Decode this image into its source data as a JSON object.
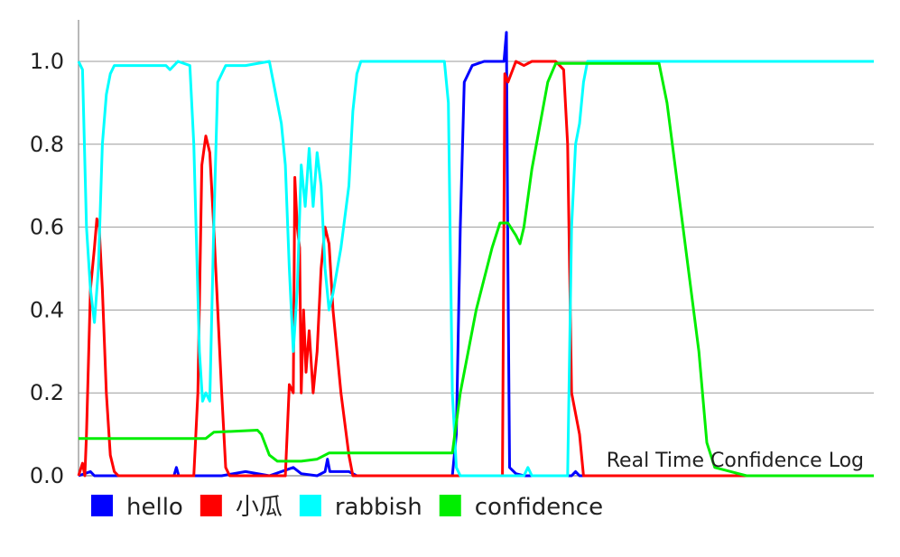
{
  "chart_data": {
    "type": "line",
    "title": "",
    "description": "Real Time Confidence Log",
    "xlabel": "",
    "ylabel": "",
    "x_range": [
      0,
      100
    ],
    "ylim": [
      0,
      1.1
    ],
    "y_ticks": [
      "0.0",
      "0.2",
      "0.4",
      "0.6",
      "0.8",
      "1.0"
    ],
    "grid": "horizontal",
    "legend_position": "bottom-left",
    "series": [
      {
        "name": "hello",
        "color": "#0000ff",
        "points": [
          [
            0,
            0.0
          ],
          [
            1.5,
            0.01
          ],
          [
            2,
            0.0
          ],
          [
            12,
            0.0
          ],
          [
            12.3,
            0.02
          ],
          [
            12.6,
            0.0
          ],
          [
            18,
            0.0
          ],
          [
            21,
            0.01
          ],
          [
            24,
            0.0
          ],
          [
            27,
            0.02
          ],
          [
            28,
            0.005
          ],
          [
            30,
            0.0
          ],
          [
            31,
            0.01
          ],
          [
            31.3,
            0.04
          ],
          [
            31.6,
            0.01
          ],
          [
            34,
            0.01
          ],
          [
            35,
            0.0
          ],
          [
            47,
            0.0
          ],
          [
            47.5,
            0.1
          ],
          [
            48,
            0.6
          ],
          [
            48.5,
            0.95
          ],
          [
            49.5,
            0.99
          ],
          [
            51,
            1.0
          ],
          [
            53.5,
            1.0
          ],
          [
            53.8,
            1.07
          ],
          [
            54,
            0.5
          ],
          [
            54.2,
            0.02
          ],
          [
            55,
            0.005
          ],
          [
            56,
            0.0
          ],
          [
            62,
            0.0
          ],
          [
            62.5,
            0.01
          ],
          [
            63,
            0.0
          ],
          [
            100,
            0.0
          ]
        ]
      },
      {
        "name": "小瓜",
        "color": "#ff0000",
        "points": [
          [
            0,
            0.0
          ],
          [
            0.5,
            0.03
          ],
          [
            0.8,
            0.0
          ],
          [
            1,
            0.1
          ],
          [
            1.5,
            0.45
          ],
          [
            2,
            0.55
          ],
          [
            2.3,
            0.62
          ],
          [
            2.6,
            0.6
          ],
          [
            3,
            0.45
          ],
          [
            3.5,
            0.2
          ],
          [
            4,
            0.05
          ],
          [
            4.5,
            0.01
          ],
          [
            5,
            0.0
          ],
          [
            14.5,
            0.0
          ],
          [
            15,
            0.2
          ],
          [
            15.5,
            0.75
          ],
          [
            16,
            0.82
          ],
          [
            16.5,
            0.78
          ],
          [
            17,
            0.6
          ],
          [
            18,
            0.2
          ],
          [
            18.5,
            0.02
          ],
          [
            19,
            0.0
          ],
          [
            26,
            0.0
          ],
          [
            26.5,
            0.22
          ],
          [
            27,
            0.2
          ],
          [
            27.2,
            0.72
          ],
          [
            27.5,
            0.6
          ],
          [
            27.8,
            0.55
          ],
          [
            28,
            0.2
          ],
          [
            28.3,
            0.4
          ],
          [
            28.6,
            0.25
          ],
          [
            29,
            0.35
          ],
          [
            29.5,
            0.2
          ],
          [
            30,
            0.3
          ],
          [
            30.5,
            0.5
          ],
          [
            31,
            0.6
          ],
          [
            31.5,
            0.56
          ],
          [
            32,
            0.4
          ],
          [
            33,
            0.2
          ],
          [
            34,
            0.05
          ],
          [
            34.5,
            0.0
          ],
          [
            53.3,
            0.0
          ],
          [
            53.6,
            0.97
          ],
          [
            54,
            0.95
          ],
          [
            55,
            1.0
          ],
          [
            56,
            0.99
          ],
          [
            57,
            1.0
          ],
          [
            60,
            1.0
          ],
          [
            61,
            0.98
          ],
          [
            61.5,
            0.8
          ],
          [
            62,
            0.2
          ],
          [
            63,
            0.1
          ],
          [
            63.5,
            0.0
          ],
          [
            100,
            0.0
          ]
        ]
      },
      {
        "name": "rabbish",
        "color": "#00ffff",
        "points": [
          [
            0,
            1.0
          ],
          [
            0.5,
            0.98
          ],
          [
            1,
            0.6
          ],
          [
            1.5,
            0.45
          ],
          [
            2,
            0.37
          ],
          [
            2.5,
            0.5
          ],
          [
            3,
            0.8
          ],
          [
            3.5,
            0.92
          ],
          [
            4,
            0.97
          ],
          [
            4.5,
            0.99
          ],
          [
            6,
            0.99
          ],
          [
            11,
            0.99
          ],
          [
            11.5,
            0.98
          ],
          [
            12.5,
            1.0
          ],
          [
            14,
            0.99
          ],
          [
            14.5,
            0.8
          ],
          [
            15.2,
            0.3
          ],
          [
            15.6,
            0.18
          ],
          [
            16,
            0.2
          ],
          [
            16.5,
            0.18
          ],
          [
            17,
            0.6
          ],
          [
            17.5,
            0.95
          ],
          [
            18.5,
            0.99
          ],
          [
            21,
            0.99
          ],
          [
            24,
            1.0
          ],
          [
            25.5,
            0.85
          ],
          [
            26,
            0.75
          ],
          [
            26.5,
            0.5
          ],
          [
            27,
            0.3
          ],
          [
            27.5,
            0.45
          ],
          [
            28,
            0.75
          ],
          [
            28.5,
            0.65
          ],
          [
            29,
            0.79
          ],
          [
            29.5,
            0.65
          ],
          [
            30,
            0.78
          ],
          [
            30.5,
            0.7
          ],
          [
            31,
            0.5
          ],
          [
            31.5,
            0.4
          ],
          [
            32,
            0.44
          ],
          [
            33,
            0.55
          ],
          [
            34,
            0.7
          ],
          [
            34.5,
            0.88
          ],
          [
            35,
            0.97
          ],
          [
            35.5,
            1.0
          ],
          [
            46,
            1.0
          ],
          [
            46.5,
            0.9
          ],
          [
            47,
            0.2
          ],
          [
            47.5,
            0.02
          ],
          [
            48,
            0.0
          ],
          [
            56,
            0.0
          ],
          [
            56.5,
            0.02
          ],
          [
            57,
            0.0
          ],
          [
            60,
            0.0
          ],
          [
            61.5,
            0.0
          ],
          [
            62,
            0.6
          ],
          [
            62.5,
            0.8
          ],
          [
            63,
            0.85
          ],
          [
            63.5,
            0.95
          ],
          [
            64,
            1.0
          ],
          [
            100,
            1.0
          ]
        ]
      },
      {
        "name": "confidence",
        "color": "#00ee00",
        "points": [
          [
            0,
            0.09
          ],
          [
            16,
            0.09
          ],
          [
            17,
            0.105
          ],
          [
            22.5,
            0.11
          ],
          [
            23,
            0.1
          ],
          [
            24,
            0.05
          ],
          [
            25,
            0.035
          ],
          [
            28,
            0.035
          ],
          [
            30,
            0.04
          ],
          [
            31.5,
            0.055
          ],
          [
            47,
            0.055
          ],
          [
            48,
            0.2
          ],
          [
            50,
            0.4
          ],
          [
            52,
            0.55
          ],
          [
            53,
            0.61
          ],
          [
            54,
            0.61
          ],
          [
            55,
            0.58
          ],
          [
            55.5,
            0.56
          ],
          [
            56,
            0.6
          ],
          [
            57,
            0.74
          ],
          [
            59,
            0.95
          ],
          [
            60,
            0.995
          ],
          [
            73,
            0.995
          ],
          [
            74,
            0.9
          ],
          [
            76,
            0.6
          ],
          [
            78,
            0.3
          ],
          [
            79,
            0.08
          ],
          [
            80,
            0.02
          ],
          [
            83,
            0.005
          ],
          [
            84,
            0.0
          ],
          [
            100,
            0.0
          ]
        ]
      }
    ]
  }
}
